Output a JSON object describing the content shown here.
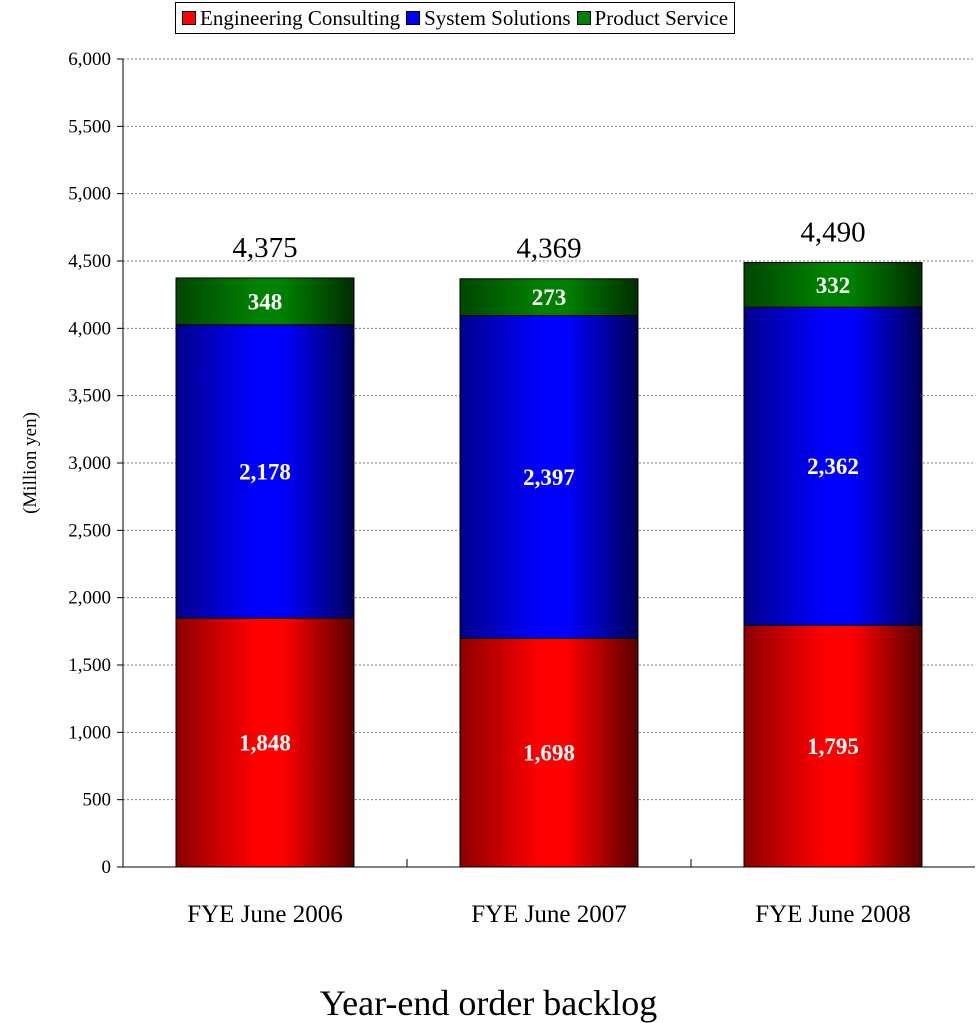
{
  "chart_data": {
    "type": "bar",
    "stacked": true,
    "title": "",
    "caption": "Year-end order backlog",
    "ylabel": "(Million yen)",
    "xlabel": "",
    "ylim": [
      0,
      6000
    ],
    "yticks": [
      0,
      500,
      1000,
      1500,
      2000,
      2500,
      3000,
      3500,
      4000,
      4500,
      5000,
      5500,
      6000
    ],
    "ytick_labels": [
      "0",
      "500",
      "1,000",
      "1,500",
      "2,000",
      "2,500",
      "3,000",
      "3,500",
      "4,000",
      "4,500",
      "5,000",
      "5,500",
      "6,000"
    ],
    "grid": "horizontal dotted",
    "legend_position": "top",
    "categories": [
      "FYE June 2006",
      "FYE June 2007",
      "FYE June 2008"
    ],
    "series": [
      {
        "name": "Engineering Consulting",
        "color": "#ff0000",
        "values": [
          1848,
          1698,
          1795
        ],
        "labels": [
          "1,848",
          "1,698",
          "1,795"
        ]
      },
      {
        "name": "System Solutions",
        "color": "#0000ff",
        "values": [
          2178,
          2397,
          2362
        ],
        "labels": [
          "2,178",
          "2,397",
          "2,362"
        ]
      },
      {
        "name": "Product Service",
        "color": "#008000",
        "values": [
          348,
          273,
          332
        ],
        "labels": [
          "348",
          "273",
          "332"
        ]
      }
    ],
    "totals": [
      4375,
      4369,
      4490
    ],
    "total_labels": [
      "4,375",
      "4,369",
      "4,490"
    ]
  }
}
